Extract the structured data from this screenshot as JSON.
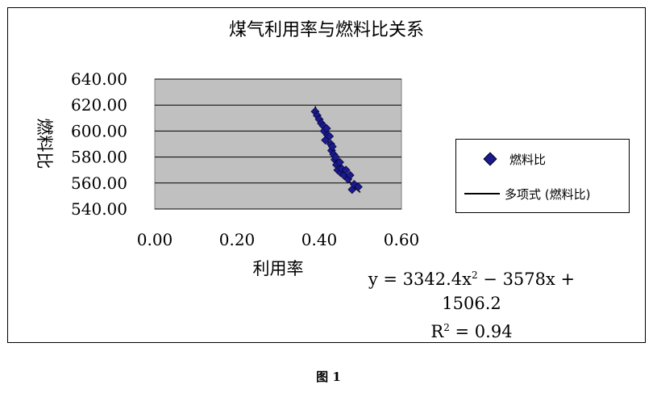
{
  "chart_data": {
    "type": "scatter",
    "title": "煤气利用率与燃料比关系",
    "xlabel": "利用率",
    "ylabel": "燃料比",
    "xlim": [
      0,
      0.6
    ],
    "ylim": [
      540,
      640
    ],
    "xticks": [
      "0.00",
      "0.20",
      "0.40",
      "0.60"
    ],
    "yticks": [
      "540.00",
      "560.00",
      "580.00",
      "600.00",
      "620.00",
      "640.00"
    ],
    "grid": true,
    "legend_position": "right",
    "series": [
      {
        "name": "燃料比",
        "marker": "diamond",
        "color": "#1a1a8c",
        "points": [
          [
            0.39,
            615
          ],
          [
            0.395,
            612
          ],
          [
            0.4,
            609
          ],
          [
            0.405,
            606
          ],
          [
            0.41,
            604
          ],
          [
            0.412,
            600
          ],
          [
            0.418,
            602
          ],
          [
            0.42,
            597
          ],
          [
            0.415,
            593
          ],
          [
            0.425,
            596
          ],
          [
            0.428,
            590
          ],
          [
            0.43,
            585
          ],
          [
            0.432,
            588
          ],
          [
            0.435,
            582
          ],
          [
            0.438,
            578
          ],
          [
            0.44,
            580
          ],
          [
            0.442,
            574
          ],
          [
            0.445,
            570
          ],
          [
            0.45,
            576
          ],
          [
            0.452,
            568
          ],
          [
            0.455,
            571
          ],
          [
            0.46,
            566
          ],
          [
            0.465,
            570
          ],
          [
            0.47,
            563
          ],
          [
            0.475,
            566
          ],
          [
            0.48,
            555
          ],
          [
            0.485,
            559
          ],
          [
            0.495,
            557
          ]
        ]
      },
      {
        "name": "多项式 (燃料比)",
        "type": "trendline",
        "coefficients": [
          3342.4,
          -3578,
          1506.2
        ],
        "x_range": [
          0.39,
          0.5
        ],
        "color": "#000000"
      }
    ],
    "equation": {
      "line1": "y = 3342.4x",
      "exp": "2",
      "line1_tail": " − 3578x +",
      "line2": "1506.2",
      "r2_prefix": "R",
      "r2_exp": "2",
      "r2_value": " = 0.94"
    }
  },
  "caption": "图 1"
}
